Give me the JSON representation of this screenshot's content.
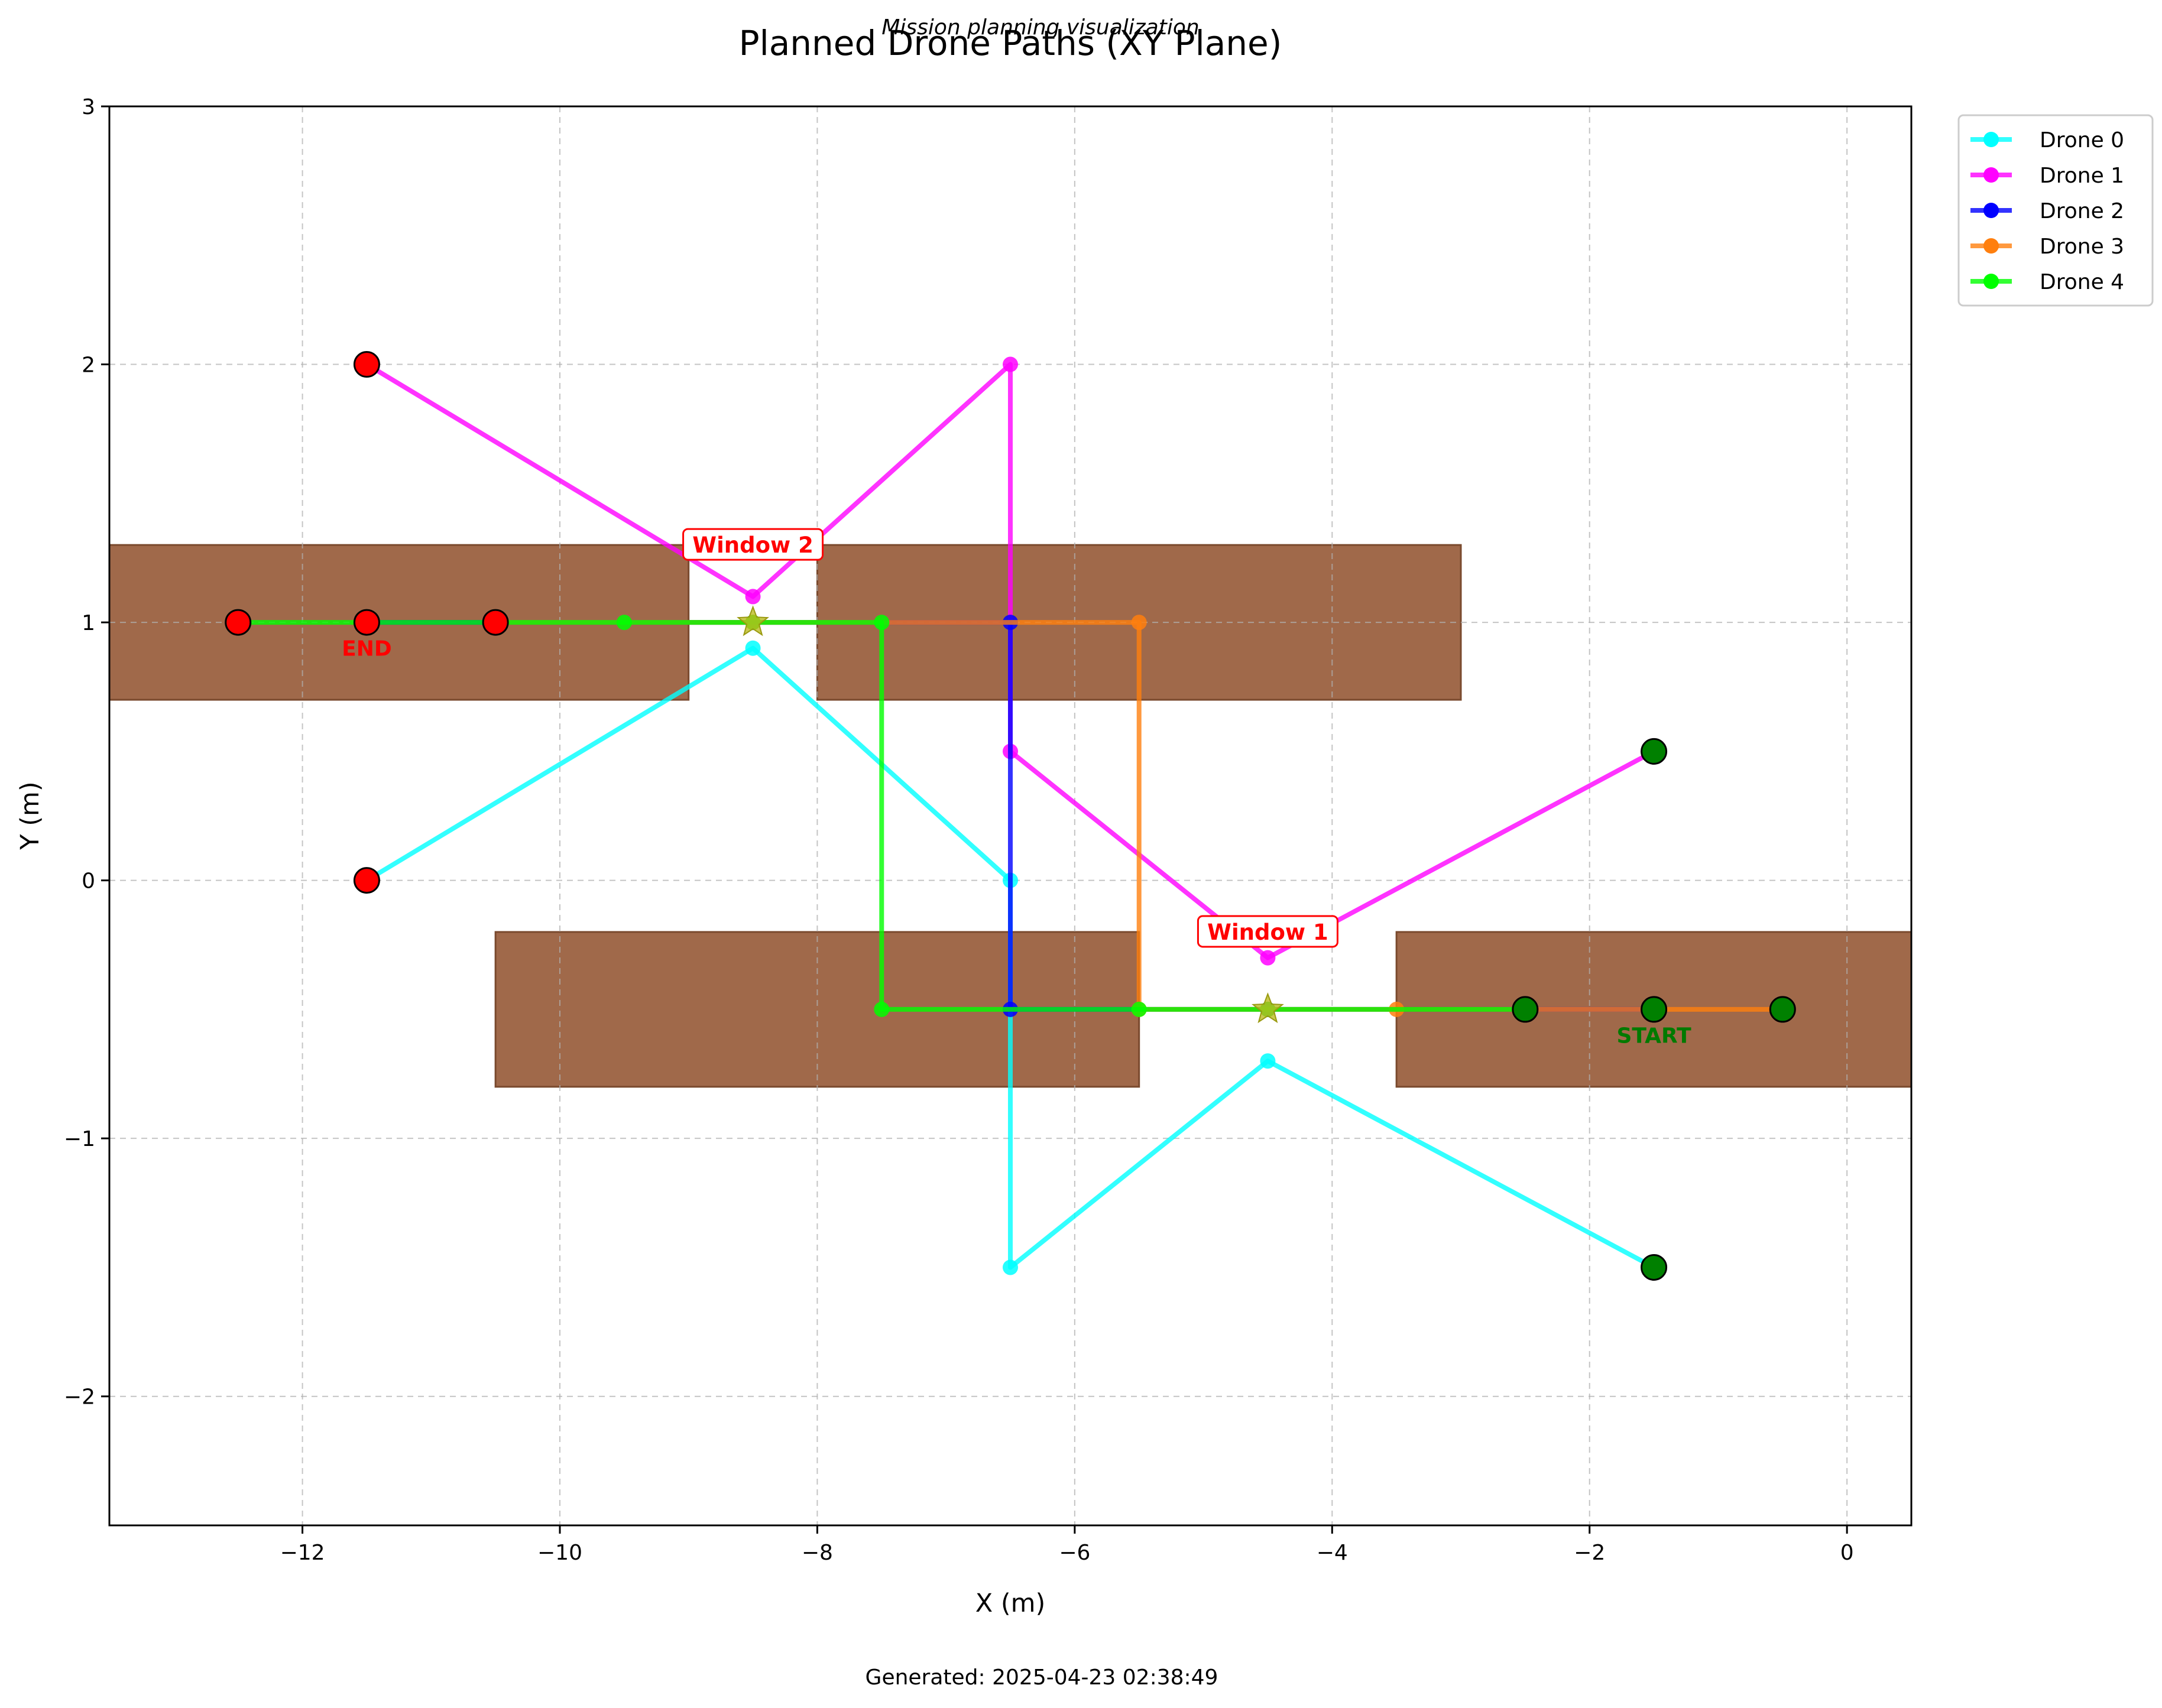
{
  "chart_data": {
    "type": "line",
    "title": "Planned Drone Paths (XY Plane)",
    "subtitle": "Mission planning visualization",
    "xlabel": "X (m)",
    "ylabel": "Y (m)",
    "footer": "Generated: 2025-04-23 02:38:49",
    "xlim": [
      -13.5,
      0.5
    ],
    "ylim": [
      -2.5,
      3
    ],
    "xticks": [
      -12,
      -10,
      -8,
      -6,
      -4,
      -2,
      0
    ],
    "yticks": [
      -2,
      -1,
      0,
      1,
      2,
      3
    ],
    "xtick_labels": [
      "−12",
      "−10",
      "−8",
      "−6",
      "−4",
      "−2",
      "0"
    ],
    "ytick_labels": [
      "−2",
      "−1",
      "0",
      "1",
      "2",
      "3"
    ],
    "grid": true,
    "legend_position": "outside top-right",
    "obstacle_color": "#a0694a",
    "walls": [
      {
        "x": [
          -13.5,
          -9
        ],
        "y": [
          0.7,
          1.3
        ]
      },
      {
        "x": [
          -8,
          -3
        ],
        "y": [
          0.7,
          1.3
        ]
      },
      {
        "x": [
          -10.5,
          -5.5
        ],
        "y": [
          -0.8,
          -0.2
        ]
      },
      {
        "x": [
          -3.5,
          0.5
        ],
        "y": [
          -0.8,
          -0.2
        ]
      }
    ],
    "windows": [
      {
        "label": "Window 1",
        "center": [
          -4.5,
          -0.5
        ],
        "label_pos": [
          -4.5,
          -0.2
        ]
      },
      {
        "label": "Window 2",
        "center": [
          -8.5,
          1.0
        ],
        "label_pos": [
          -8.5,
          1.3
        ]
      }
    ],
    "start_label": "START",
    "end_label": "END",
    "start_label_pos": [
      -1.5,
      -0.6
    ],
    "end_label_pos": [
      -11.5,
      0.9
    ],
    "series": [
      {
        "name": "Drone 0",
        "color": "#00ffff",
        "points": [
          [
            -1.5,
            -1.5
          ],
          [
            -4.5,
            -0.7
          ],
          [
            -6.5,
            -1.5
          ],
          [
            -6.5,
            0
          ],
          [
            -8.5,
            0.9
          ],
          [
            -11.5,
            0
          ]
        ]
      },
      {
        "name": "Drone 1",
        "color": "#ff00ff",
        "points": [
          [
            -1.5,
            0.5
          ],
          [
            -4.5,
            -0.3
          ],
          [
            -6.5,
            0.5
          ],
          [
            -6.5,
            2
          ],
          [
            -8.5,
            1.1
          ],
          [
            -11.5,
            2
          ]
        ]
      },
      {
        "name": "Drone 2",
        "color": "#0000ff",
        "points": [
          [
            -1.5,
            -0.5
          ],
          [
            -4.5,
            -0.5
          ],
          [
            -6.5,
            -0.5
          ],
          [
            -6.5,
            1
          ],
          [
            -8.5,
            1
          ],
          [
            -11.5,
            1
          ]
        ]
      },
      {
        "name": "Drone 3",
        "color": "#ff7f0e",
        "points": [
          [
            -0.5,
            -0.5
          ],
          [
            -3.5,
            -0.5
          ],
          [
            -5.5,
            -0.5
          ],
          [
            -5.5,
            1
          ],
          [
            -8.5,
            1
          ],
          [
            -10.5,
            1
          ]
        ]
      },
      {
        "name": "Drone 4",
        "color": "#00ff00",
        "points": [
          [
            -2.5,
            -0.5
          ],
          [
            -4.5,
            -0.5
          ],
          [
            -5.5,
            -0.5
          ],
          [
            -7.5,
            -0.5
          ],
          [
            -7.5,
            1
          ],
          [
            -8.5,
            1
          ],
          [
            -9.5,
            1
          ],
          [
            -12.5,
            1
          ]
        ]
      }
    ]
  }
}
